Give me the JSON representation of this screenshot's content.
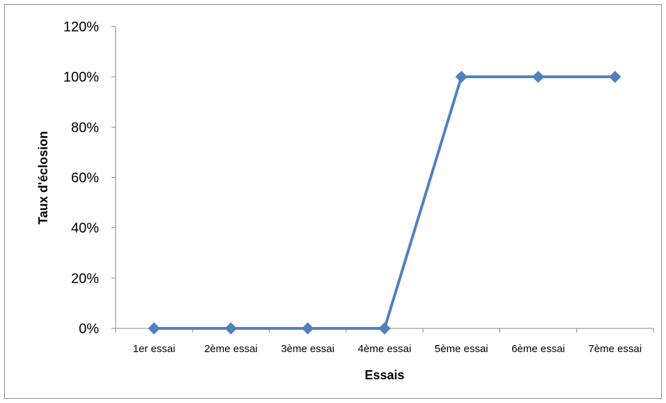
{
  "chart_data": {
    "type": "line",
    "categories": [
      "1er essai",
      "2ème essai",
      "3ème essai",
      "4ème essai",
      "5ème essai",
      "6ème essai",
      "7ème essai"
    ],
    "series": [
      {
        "values": [
          0,
          0,
          0,
          0,
          100,
          100,
          100
        ]
      }
    ],
    "xlabel": "Essais",
    "ylabel": "Taux d'éclosion",
    "ylim": [
      0,
      120
    ],
    "yticks": [
      "0%",
      "20%",
      "40%",
      "60%",
      "80%",
      "100%",
      "120%"
    ],
    "grid": false,
    "legend": "none",
    "marker": "diamond",
    "colors": {
      "series": "#4f81bd",
      "axis": "#868686"
    }
  }
}
